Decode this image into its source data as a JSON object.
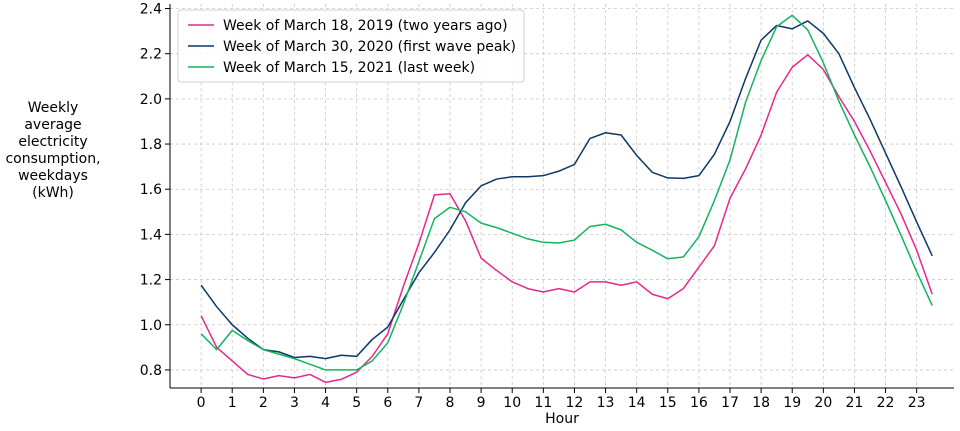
{
  "chart_data": {
    "type": "line",
    "title": "",
    "xlabel": "Hour",
    "ylabel": "Weekly\naverage\nelectricity\nconsumption,\nweekdays\n(kWh)",
    "xlim": [
      -1,
      24.2
    ],
    "ylim": [
      0.72,
      2.42
    ],
    "x_ticks": [
      "0",
      "1",
      "2",
      "3",
      "4",
      "5",
      "6",
      "7",
      "8",
      "9",
      "10",
      "11",
      "12",
      "13",
      "14",
      "15",
      "16",
      "17",
      "18",
      "19",
      "20",
      "21",
      "22",
      "23"
    ],
    "y_ticks": [
      "0.8",
      "1.0",
      "1.2",
      "1.4",
      "1.6",
      "1.8",
      "2.0",
      "2.2",
      "2.4"
    ],
    "grid": true,
    "legend_position": "top-left",
    "x": [
      0,
      0.5,
      1,
      1.5,
      2,
      2.5,
      3,
      3.5,
      4,
      4.5,
      5,
      5.5,
      6,
      6.5,
      7,
      7.5,
      8,
      8.5,
      9,
      9.5,
      10,
      10.5,
      11,
      11.5,
      12,
      12.5,
      13,
      13.5,
      14,
      14.5,
      15,
      15.5,
      16,
      16.5,
      17,
      17.5,
      18,
      18.5,
      19,
      19.5,
      20,
      20.5,
      21,
      21.5,
      22,
      22.5,
      23,
      23.5
    ],
    "series": [
      {
        "name": "Week of March 18, 2019 (two years ago)",
        "color": "#e5288f",
        "values": [
          1.04,
          0.9,
          0.84,
          0.78,
          0.76,
          0.775,
          0.765,
          0.78,
          0.745,
          0.758,
          0.79,
          0.86,
          0.96,
          1.17,
          1.36,
          1.575,
          1.58,
          1.46,
          1.295,
          1.24,
          1.19,
          1.16,
          1.145,
          1.16,
          1.145,
          1.19,
          1.19,
          1.175,
          1.19,
          1.135,
          1.115,
          1.16,
          1.255,
          1.35,
          1.56,
          1.69,
          1.84,
          2.03,
          2.14,
          2.195,
          2.13,
          2.01,
          1.9,
          1.77,
          1.63,
          1.49,
          1.33,
          1.135
        ]
      },
      {
        "name": "Week of March 30, 2020 (first wave peak)",
        "color": "#0d3767",
        "values": [
          1.175,
          1.08,
          1.0,
          0.94,
          0.89,
          0.88,
          0.855,
          0.86,
          0.85,
          0.865,
          0.86,
          0.935,
          0.99,
          1.11,
          1.23,
          1.32,
          1.42,
          1.54,
          1.615,
          1.645,
          1.655,
          1.655,
          1.66,
          1.68,
          1.71,
          1.825,
          1.85,
          1.84,
          1.75,
          1.675,
          1.65,
          1.648,
          1.66,
          1.755,
          1.9,
          2.09,
          2.26,
          2.325,
          2.31,
          2.345,
          2.29,
          2.2,
          2.05,
          1.91,
          1.76,
          1.61,
          1.455,
          1.305
        ]
      },
      {
        "name": "Week of March 15, 2021 (last week)",
        "color": "#15b35f",
        "values": [
          0.96,
          0.89,
          0.975,
          0.93,
          0.89,
          0.87,
          0.85,
          0.825,
          0.8,
          0.8,
          0.8,
          0.84,
          0.92,
          1.09,
          1.28,
          1.47,
          1.52,
          1.5,
          1.45,
          1.43,
          1.405,
          1.38,
          1.365,
          1.362,
          1.375,
          1.435,
          1.445,
          1.42,
          1.365,
          1.33,
          1.292,
          1.3,
          1.39,
          1.55,
          1.73,
          1.985,
          2.17,
          2.32,
          2.37,
          2.305,
          2.16,
          1.99,
          1.84,
          1.7,
          1.55,
          1.395,
          1.235,
          1.085
        ]
      }
    ]
  }
}
